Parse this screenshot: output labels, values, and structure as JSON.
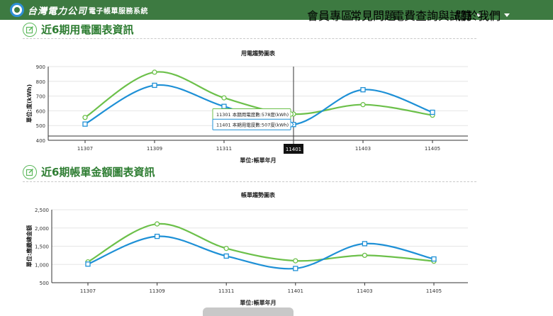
{
  "header": {
    "brand_script": "台灣電力公司",
    "brand_text": "電子帳單服務系統",
    "nav": [
      {
        "label": "會員專區",
        "dropdown": false
      },
      {
        "label": "常見問題",
        "dropdown": false
      },
      {
        "label": "電費查詢與試算",
        "dropdown": true
      },
      {
        "label": "關於我們",
        "dropdown": true
      }
    ]
  },
  "section1": {
    "title": "近6期用電圖表資訊"
  },
  "section2": {
    "title": "近6期帳單金額圖表資訊"
  },
  "colors": {
    "green": "#6cc04a",
    "blue": "#1e90d6",
    "header": "#3d7a41"
  },
  "chart_data": [
    {
      "type": "line",
      "title": "用電趨勢圖表",
      "xlabel": "單位:帳單年月",
      "ylabel": "單位:度(kWh)",
      "categories": [
        "11307",
        "11309",
        "11311",
        "11401",
        "11403",
        "11405"
      ],
      "ylim": [
        400,
        900
      ],
      "yticks": [
        "400",
        "500",
        "600",
        "700",
        "800",
        "900"
      ],
      "series": [
        {
          "color": "#6cc04a",
          "marker": "circle",
          "values": [
            555,
            862,
            688,
            578,
            642,
            570
          ]
        },
        {
          "color": "#1e90d6",
          "marker": "square",
          "values": [
            510,
            773,
            630,
            507,
            743,
            590
          ]
        }
      ],
      "crosshair": {
        "category": "11401"
      },
      "tooltips": [
        "11301 本期用電度數:578度(kWh)",
        "11401 本期用電度數:507度(kWh)"
      ]
    },
    {
      "type": "line",
      "title": "帳單趨勢圖表",
      "xlabel": "單位:帳單年月",
      "ylabel": "單位:應繳總金額",
      "categories": [
        "11307",
        "11309",
        "11311",
        "11401",
        "11403",
        "11405"
      ],
      "ylim": [
        500,
        2500
      ],
      "yticks": [
        "500",
        "1,000",
        "1,500",
        "2,000",
        "2,500"
      ],
      "series": [
        {
          "color": "#6cc04a",
          "marker": "circle",
          "values": [
            1070,
            2110,
            1440,
            1100,
            1250,
            1090
          ]
        },
        {
          "color": "#1e90d6",
          "marker": "square",
          "values": [
            1010,
            1770,
            1230,
            890,
            1570,
            1150
          ]
        }
      ]
    }
  ]
}
